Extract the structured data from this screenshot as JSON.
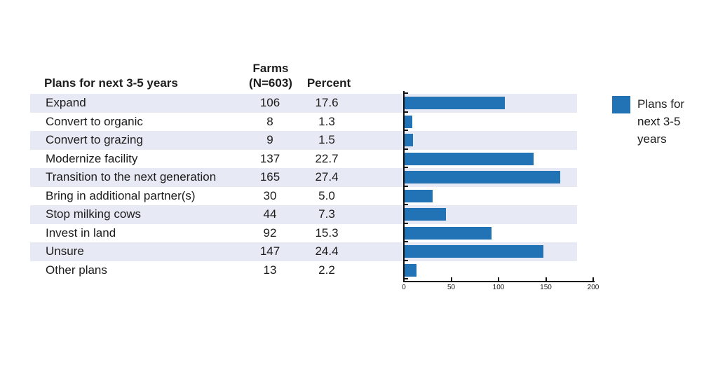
{
  "table": {
    "header": {
      "plans": "Plans for next 3-5 years",
      "farms_line1": "Farms",
      "farms_line2": "(N=603)",
      "percent": "Percent"
    },
    "rows": [
      {
        "label": "Expand",
        "farms": "106",
        "percent": "17.6"
      },
      {
        "label": "Convert to organic",
        "farms": "8",
        "percent": "1.3"
      },
      {
        "label": "Convert to grazing",
        "farms": "9",
        "percent": "1.5"
      },
      {
        "label": "Modernize facility",
        "farms": "137",
        "percent": "22.7"
      },
      {
        "label": "Transition to the next generation",
        "farms": "165",
        "percent": "27.4"
      },
      {
        "label": "Bring in additional partner(s)",
        "farms": "30",
        "percent": "5.0"
      },
      {
        "label": "Stop milking cows",
        "farms": "44",
        "percent": "7.3"
      },
      {
        "label": "Invest in land",
        "farms": "92",
        "percent": "15.3"
      },
      {
        "label": "Unsure",
        "farms": "147",
        "percent": "24.4"
      },
      {
        "label": "Other plans",
        "farms": "13",
        "percent": "2.2"
      }
    ]
  },
  "chart_data": {
    "type": "bar",
    "orientation": "horizontal",
    "title": "",
    "xlabel": "",
    "ylabel": "",
    "categories": [
      "Expand",
      "Convert to organic",
      "Convert to grazing",
      "Modernize facility",
      "Transition to the next generation",
      "Bring in additional partner(s)",
      "Stop milking cows",
      "Invest in land",
      "Unsure",
      "Other plans"
    ],
    "series": [
      {
        "name": "Plans for next 3-5 years",
        "values": [
          106,
          8,
          9,
          137,
          165,
          30,
          44,
          92,
          147,
          13
        ],
        "percent_values": [
          17.6,
          1.3,
          1.5,
          22.7,
          27.4,
          5.0,
          7.3,
          15.3,
          24.4,
          2.2
        ]
      }
    ],
    "n_total": 603,
    "xlim": [
      0,
      200
    ],
    "x_tick_labels": [
      "0",
      "50",
      "100",
      "150",
      "200"
    ],
    "x_tick_values": [
      0,
      50,
      100,
      150,
      200
    ],
    "grid": false,
    "legend_position": "right",
    "bar_color": "#2273b6",
    "row_stripe_color": "#e7eaf4"
  },
  "legend": {
    "label": "Plans for next 3-5 years"
  }
}
